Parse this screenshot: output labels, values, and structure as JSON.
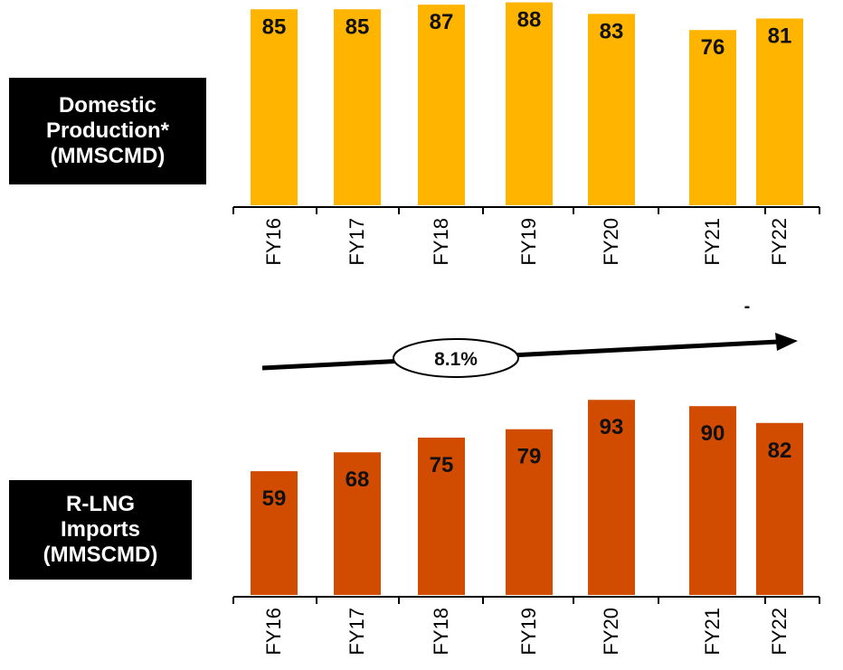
{
  "labels": {
    "top": "Domestic\nProduction*\n(MMSCMD)",
    "bottom": "R-LNG\nImports\n(MMSCMD)"
  },
  "cagr": {
    "label": "8.1%"
  },
  "dash_note": "-",
  "colors": {
    "top_bar": "#FFB400",
    "bottom_bar": "#D14B00",
    "arrow": "#000000"
  },
  "chart_data": [
    {
      "type": "bar",
      "categories": [
        "FY16",
        "FY17",
        "FY18",
        "FY19",
        "FY20",
        "FY21",
        "FY22"
      ],
      "series": [
        {
          "values": [
            85,
            85,
            87,
            88,
            83,
            76,
            81
          ]
        }
      ],
      "title": "",
      "xlabel": "",
      "ylabel": "Domestic Production* (MMSCMD)",
      "grid": false
    },
    {
      "type": "bar",
      "categories": [
        "FY16",
        "FY17",
        "FY18",
        "FY19",
        "FY20",
        "FY21",
        "FY22"
      ],
      "series": [
        {
          "values": [
            59,
            68,
            75,
            79,
            93,
            90,
            82
          ]
        }
      ],
      "title": "",
      "xlabel": "",
      "ylabel": "R-LNG Imports (MMSCMD)",
      "grid": false
    }
  ]
}
